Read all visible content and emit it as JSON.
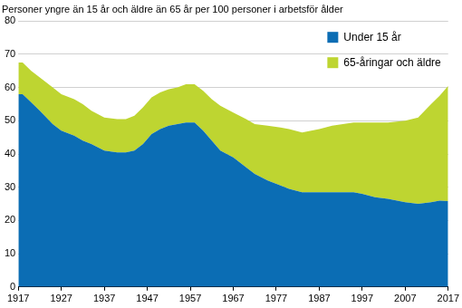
{
  "chart_data": {
    "type": "area",
    "title": "Personer yngre än 15 år och äldre än 65 år per 100 personer i arbetsför ålder",
    "x": [
      1917,
      1918,
      1920,
      1922,
      1925,
      1927,
      1930,
      1932,
      1934,
      1937,
      1940,
      1942,
      1944,
      1946,
      1948,
      1950,
      1952,
      1954,
      1956,
      1958,
      1960,
      1962,
      1964,
      1967,
      1970,
      1972,
      1975,
      1978,
      1980,
      1983,
      1987,
      1990,
      1995,
      1997,
      2000,
      2003,
      2007,
      2010,
      2013,
      2015,
      2017
    ],
    "series": [
      {
        "name": "Under 15 år",
        "color": "#0b6db4",
        "values": [
          58,
          58,
          55.5,
          53,
          49,
          47,
          45.5,
          44,
          43,
          41,
          40.5,
          40.5,
          41,
          43,
          46,
          47.5,
          48.5,
          49,
          49.5,
          49.5,
          47,
          44,
          41,
          39,
          36,
          34,
          32,
          30.5,
          29.5,
          28.5,
          28.5,
          28.5,
          28.5,
          28,
          27,
          26.5,
          25.5,
          25,
          25.5,
          26,
          25.8
        ]
      },
      {
        "name": "65-åringar och äldre",
        "color": "#bed531",
        "values": [
          9.5,
          9.5,
          9.5,
          10,
          11,
          11,
          11,
          11,
          10,
          10,
          10,
          10,
          10.5,
          11,
          11,
          11,
          11,
          11,
          11.5,
          11.5,
          12,
          12.5,
          13.5,
          13.5,
          14.5,
          15,
          16.5,
          17.5,
          18,
          18,
          19,
          20,
          21,
          21.5,
          22.5,
          23,
          24.5,
          26,
          29.5,
          31.5,
          34.7
        ]
      }
    ],
    "xlim": [
      1917,
      2017
    ],
    "xticks": [
      1917,
      1927,
      1937,
      1947,
      1957,
      1967,
      1977,
      1987,
      1997,
      2007,
      2017
    ],
    "ylim": [
      0,
      80
    ],
    "yticks": [
      0,
      10,
      20,
      30,
      40,
      50,
      60,
      70,
      80
    ],
    "grid": true,
    "stacked": true,
    "legend": "upper right"
  }
}
